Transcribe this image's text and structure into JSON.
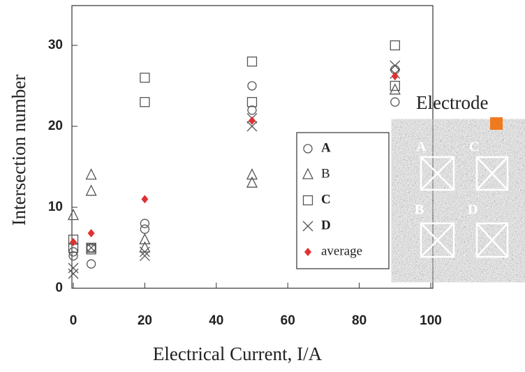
{
  "chart_data": {
    "type": "scatter",
    "x_label": "Electrical Current,   I/A",
    "y_label": "Intersection number",
    "xlim": [
      0,
      100
    ],
    "xticks": [
      0,
      20,
      40,
      60,
      80,
      100
    ],
    "ylim": [
      0,
      35
    ],
    "yticks": [
      0,
      10,
      20,
      30
    ],
    "series": [
      {
        "name": "A",
        "marker": "circle",
        "color": "#555555",
        "x": [
          0,
          0,
          5,
          5,
          20,
          20,
          50,
          50,
          90,
          90
        ],
        "y": [
          4.5,
          4,
          5,
          3,
          8,
          7.3,
          25,
          22,
          27,
          23
        ]
      },
      {
        "name": "B",
        "marker": "triangle",
        "color": "#555555",
        "x": [
          0,
          5,
          5,
          20,
          20,
          50,
          50,
          90
        ],
        "y": [
          9,
          14,
          12,
          6,
          5,
          14,
          13,
          24.5
        ]
      },
      {
        "name": "C",
        "marker": "square",
        "color": "#555555",
        "x": [
          0,
          0,
          5,
          5,
          20,
          20,
          50,
          50,
          90,
          90
        ],
        "y": [
          6,
          5,
          5,
          4.8,
          26,
          23,
          28,
          23,
          30,
          25
        ]
      },
      {
        "name": "D",
        "marker": "x",
        "color": "#555555",
        "x": [
          0,
          0,
          5,
          20,
          20,
          50,
          50,
          90,
          90
        ],
        "y": [
          2.5,
          1.8,
          5,
          4,
          4.5,
          20,
          21,
          27.5,
          26.5
        ]
      },
      {
        "name": "average",
        "marker": "diamond",
        "color": "#e03030",
        "x": [
          0,
          5,
          20,
          50,
          90
        ],
        "y": [
          5.7,
          6.8,
          11,
          20.7,
          26.2
        ]
      }
    ]
  },
  "inset": {
    "title": "Electrode",
    "labels": [
      "A",
      "C",
      "B",
      "D"
    ]
  }
}
